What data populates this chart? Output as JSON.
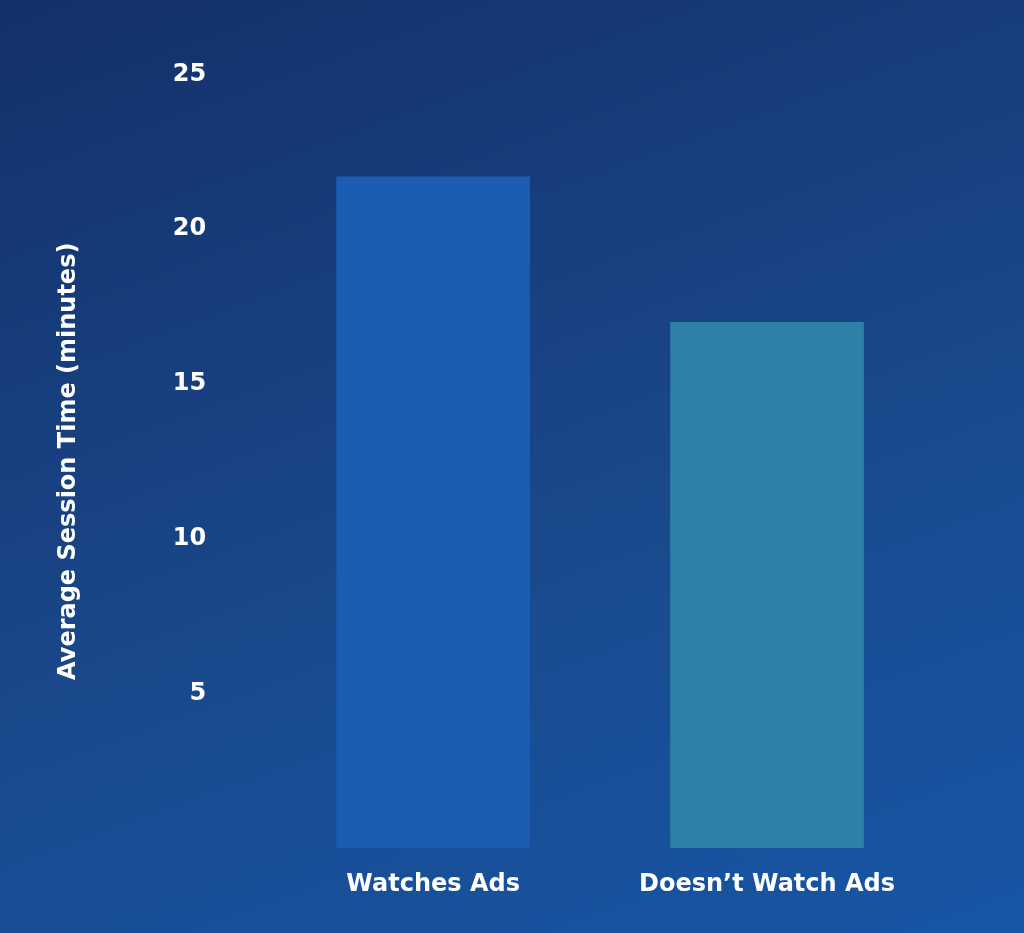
{
  "chart_data": {
    "type": "bar",
    "ylabel": "Average Session Time (minutes)",
    "categories": [
      "Watches Ads",
      "Doesn’t Watch Ads"
    ],
    "values": [
      21.7,
      17
    ],
    "colors": [
      "#1a5db3",
      "#2e80a8"
    ],
    "ylim": [
      0,
      25
    ],
    "yticks": [
      5,
      10,
      15,
      20,
      25
    ],
    "grid": false,
    "legend": false
  }
}
